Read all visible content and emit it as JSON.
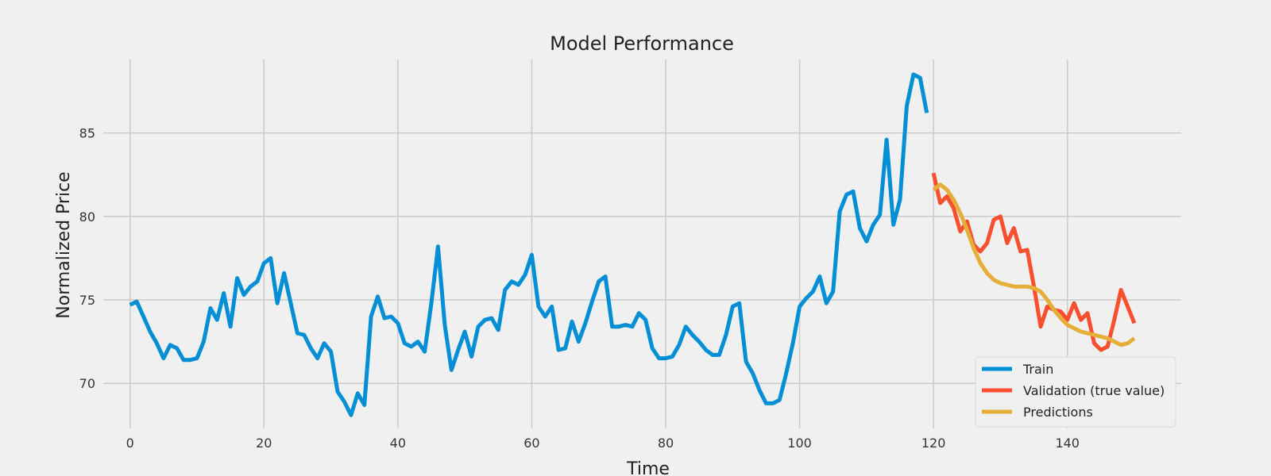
{
  "chart_data": {
    "type": "line",
    "title": "Model Performance",
    "xlabel": "Time",
    "ylabel": "Normalized Price",
    "xlim": [
      -4,
      157
    ],
    "ylim": [
      67.3,
      89.4
    ],
    "xticks": [
      0,
      20,
      40,
      60,
      80,
      100,
      120,
      140
    ],
    "yticks": [
      70,
      75,
      80,
      85
    ],
    "grid": true,
    "legend_position": "bottom-right",
    "series": [
      {
        "name": "Train",
        "color": "#008fd5",
        "x_start": 0,
        "values": [
          74.7,
          74.9,
          74.0,
          73.1,
          72.4,
          71.5,
          72.3,
          72.1,
          71.4,
          71.4,
          71.5,
          72.5,
          74.5,
          73.8,
          75.4,
          73.4,
          76.3,
          75.3,
          75.8,
          76.1,
          77.2,
          77.5,
          74.8,
          76.6,
          74.8,
          73.0,
          72.9,
          72.1,
          71.5,
          72.4,
          71.9,
          69.5,
          68.9,
          68.1,
          69.4,
          68.7,
          74.0,
          75.2,
          73.9,
          74.0,
          73.6,
          72.4,
          72.2,
          72.5,
          71.9,
          74.8,
          78.2,
          73.5,
          70.8,
          72.0,
          73.1,
          71.6,
          73.4,
          73.8,
          73.9,
          73.2,
          75.6,
          76.1,
          75.9,
          76.5,
          77.7,
          74.6,
          74.0,
          74.6,
          72.0,
          72.1,
          73.7,
          72.5,
          73.6,
          74.9,
          76.1,
          76.4,
          73.4,
          73.4,
          73.5,
          73.4,
          74.2,
          73.8,
          72.1,
          71.5,
          71.5,
          71.6,
          72.3,
          73.4,
          72.9,
          72.5,
          72.0,
          71.7,
          71.7,
          72.9,
          74.6,
          74.8,
          71.3,
          70.6,
          69.6,
          68.8,
          68.8,
          69.0,
          70.6,
          72.4,
          74.6,
          75.1,
          75.5,
          76.4,
          74.8,
          75.5,
          80.3,
          81.3,
          81.5,
          79.3,
          78.5,
          79.5,
          80.1,
          84.6,
          79.5,
          81.0,
          86.6,
          88.5,
          88.3,
          86.2
        ]
      },
      {
        "name": "Validation (true value)",
        "color": "#fc4f30",
        "x_start": 120,
        "values": [
          82.6,
          80.8,
          81.2,
          80.5,
          79.1,
          79.7,
          78.3,
          77.9,
          78.4,
          79.8,
          80.0,
          78.4,
          79.3,
          77.9,
          78.0,
          75.8,
          73.4,
          74.6,
          74.4,
          74.3,
          73.8,
          74.8,
          73.8,
          74.2,
          72.4,
          72.0,
          72.2,
          73.8,
          75.6,
          74.6,
          73.6
        ]
      },
      {
        "name": "Predictions",
        "color": "#e5ae38",
        "x_start": 120,
        "values": [
          81.6,
          81.9,
          81.6,
          81.0,
          80.2,
          79.2,
          78.1,
          77.2,
          76.6,
          76.2,
          76.0,
          75.9,
          75.8,
          75.8,
          75.8,
          75.7,
          75.5,
          75.0,
          74.4,
          73.9,
          73.5,
          73.3,
          73.1,
          73.0,
          72.9,
          72.8,
          72.7,
          72.5,
          72.3,
          72.4,
          72.7
        ]
      }
    ]
  }
}
